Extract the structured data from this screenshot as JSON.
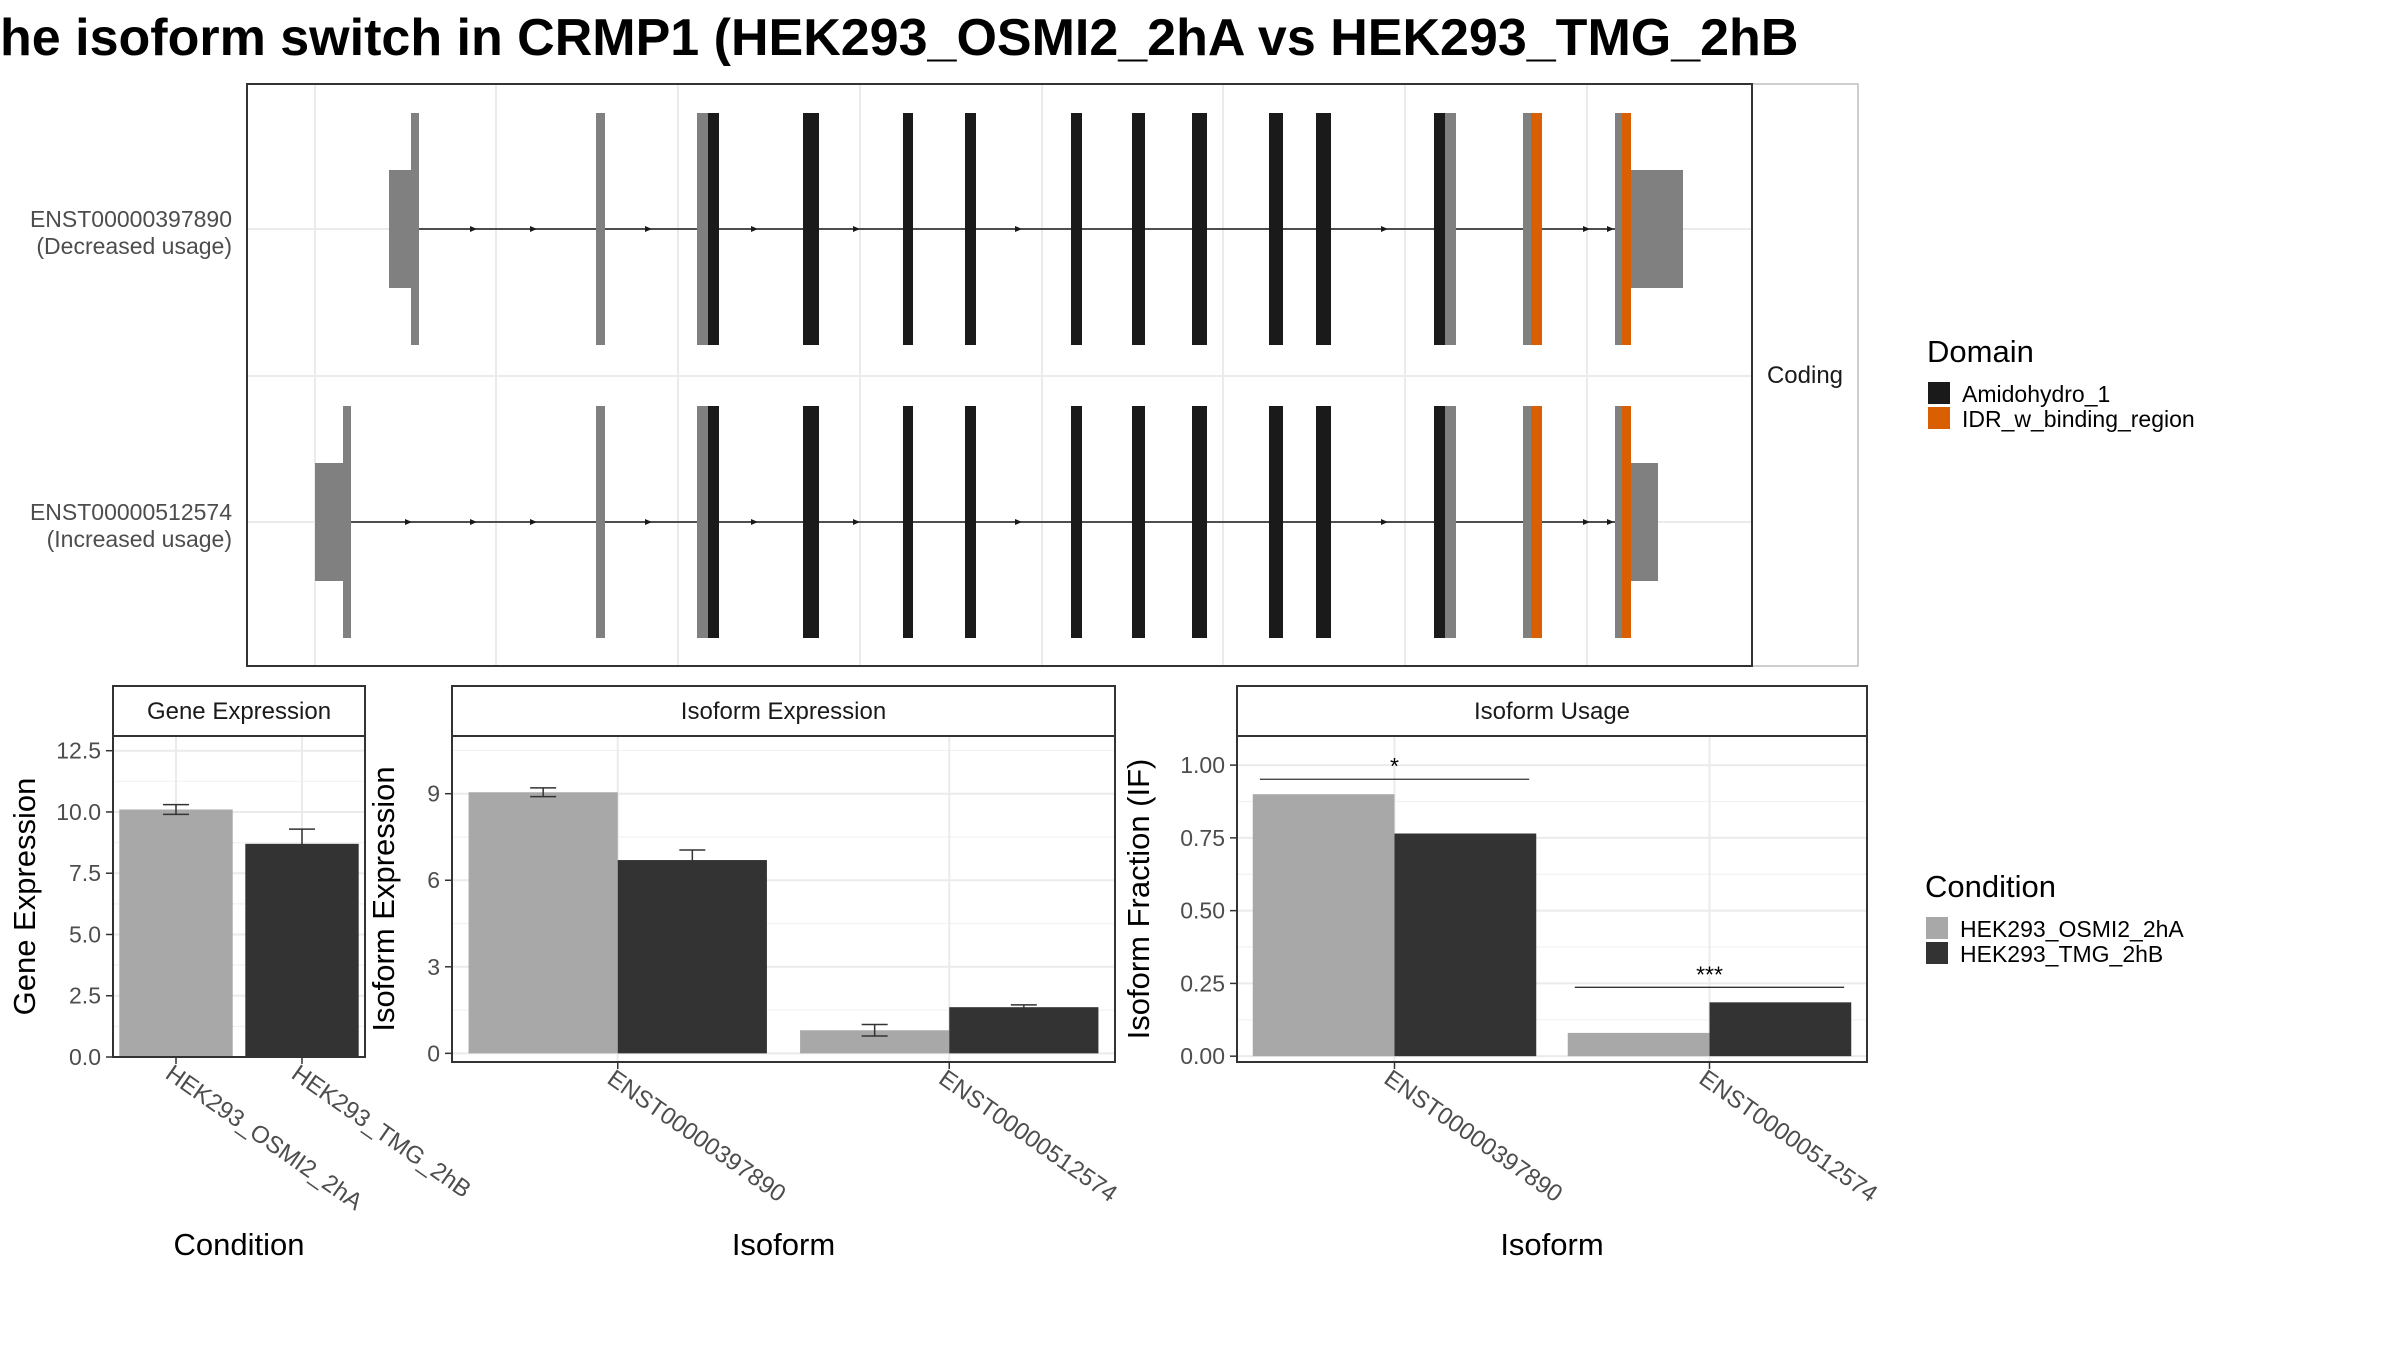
{
  "title": "he isoform switch in CRMP1 (HEK293_OSMI2_2hA vs HEK293_TMG_2hB",
  "colors": {
    "condition_a": "#a8a8a8",
    "condition_b": "#333333",
    "amidohydro": "#1a1a1a",
    "idr": "#d95f02",
    "noncoding": "#808080"
  },
  "chart_data": [
    {
      "type": "gene-structure",
      "strip_label": "Coding",
      "transcripts": [
        {
          "id": "ENST00000397890",
          "label": "(Decreased usage)"
        },
        {
          "id": "ENST00000512574",
          "label": "(Increased usage)"
        }
      ],
      "legend_title": "Domain",
      "legend": [
        "Amidohydro_1",
        "IDR_w_binding_region"
      ]
    },
    {
      "type": "bar",
      "title": "Gene Expression",
      "xlabel": "Condition",
      "ylabel": "Gene Expression",
      "categories": [
        "HEK293_OSMI2_2hA",
        "HEK293_TMG_2hB"
      ],
      "values": [
        10.1,
        8.7
      ],
      "errors": [
        [
          9.9,
          10.3
        ],
        [
          8.2,
          9.3
        ]
      ],
      "ylim": [
        0,
        13.1
      ],
      "yticks": [
        "0.0",
        "2.5",
        "5.0",
        "7.5",
        "10.0",
        "12.5"
      ]
    },
    {
      "type": "bar",
      "title": "Isoform Expression",
      "xlabel": "Isoform",
      "ylabel": "Isoform Expression",
      "categories": [
        "ENST00000397890",
        "ENST00000512574"
      ],
      "series": [
        {
          "name": "HEK293_OSMI2_2hA",
          "values": [
            9.05,
            0.8
          ],
          "errors": [
            [
              8.9,
              9.2
            ],
            [
              0.6,
              1.0
            ]
          ]
        },
        {
          "name": "HEK293_TMG_2hB",
          "values": [
            6.7,
            1.6
          ],
          "errors": [
            [
              6.35,
              7.05
            ],
            [
              1.55,
              1.68
            ]
          ]
        }
      ],
      "ylim": [
        -0.3,
        11.0
      ],
      "yticks": [
        "0",
        "3",
        "6",
        "9"
      ]
    },
    {
      "type": "bar",
      "title": "Isoform Usage",
      "xlabel": "Isoform",
      "ylabel": "Isoform Fraction (IF)",
      "categories": [
        "ENST00000397890",
        "ENST00000512574"
      ],
      "series": [
        {
          "name": "HEK293_OSMI2_2hA",
          "values": [
            0.9,
            0.08
          ]
        },
        {
          "name": "HEK293_TMG_2hB",
          "values": [
            0.765,
            0.185
          ]
        }
      ],
      "significance": [
        "*",
        "***"
      ],
      "ylim": [
        -0.02,
        1.1
      ],
      "yticks": [
        "0.00",
        "0.25",
        "0.50",
        "0.75",
        "1.00"
      ],
      "legend_title": "Condition",
      "legend": [
        "HEK293_OSMI2_2hA",
        "HEK293_TMG_2hB"
      ]
    }
  ]
}
